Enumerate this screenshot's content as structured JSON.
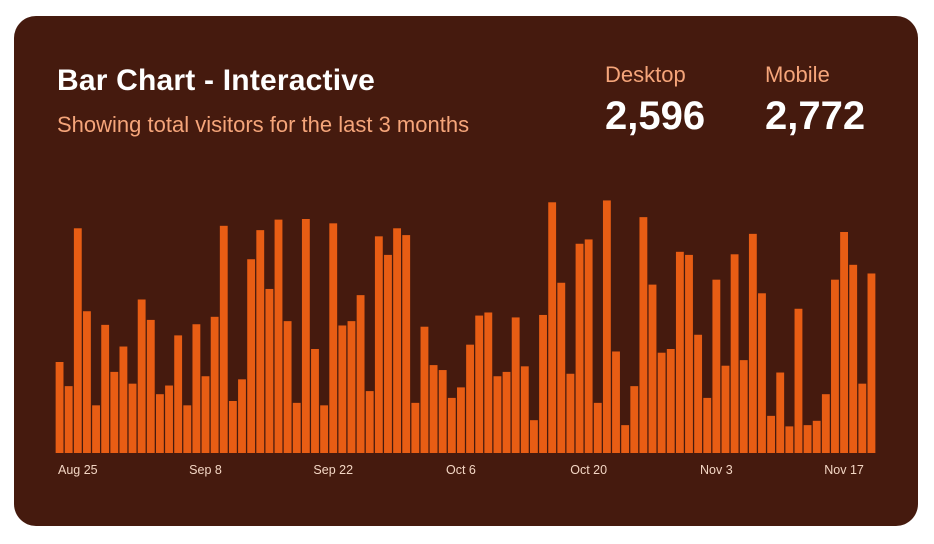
{
  "card": {
    "title": "Bar Chart - Interactive",
    "subtitle": "Showing total visitors for the last 3 months"
  },
  "stats": {
    "desktop": {
      "label": "Desktop",
      "value": "2,596"
    },
    "mobile": {
      "label": "Mobile",
      "value": "2,772"
    }
  },
  "colors": {
    "background": "#451a0e",
    "bar": "#e85d14",
    "title": "#ffffff",
    "subtitle": "#f5a57a",
    "tick": "#f3d6c4"
  },
  "chart_data": {
    "type": "bar",
    "series": [
      {
        "values": [
          147,
          108,
          363,
          229,
          77,
          207,
          131,
          172,
          112,
          248,
          215,
          95,
          109,
          190,
          77,
          208,
          124,
          220,
          367,
          84,
          119,
          313,
          360,
          265,
          377,
          213,
          81,
          378,
          168,
          77,
          371,
          206,
          213,
          255,
          100,
          350,
          320,
          363,
          352,
          81,
          204,
          142,
          134,
          89,
          106,
          175,
          222,
          227,
          124,
          131,
          219,
          140,
          53,
          223,
          405,
          275,
          128,
          338,
          345,
          81,
          408,
          164,
          45,
          108,
          381,
          272,
          162,
          168,
          325,
          320,
          191,
          89,
          280,
          141,
          321,
          150,
          354,
          258,
          60,
          130,
          43,
          233,
          45,
          52,
          95,
          280,
          357,
          304,
          112,
          290
        ]
      }
    ],
    "x_tick_labels": [
      "Aug 25",
      "Sep 8",
      "Sep 22",
      "Oct 6",
      "Oct 20",
      "Nov 3",
      "Nov 17"
    ],
    "x_tick_indices": [
      2,
      16,
      30,
      44,
      58,
      72,
      86
    ],
    "ylim": [
      0,
      420
    ],
    "grid": false,
    "legend": "none"
  }
}
